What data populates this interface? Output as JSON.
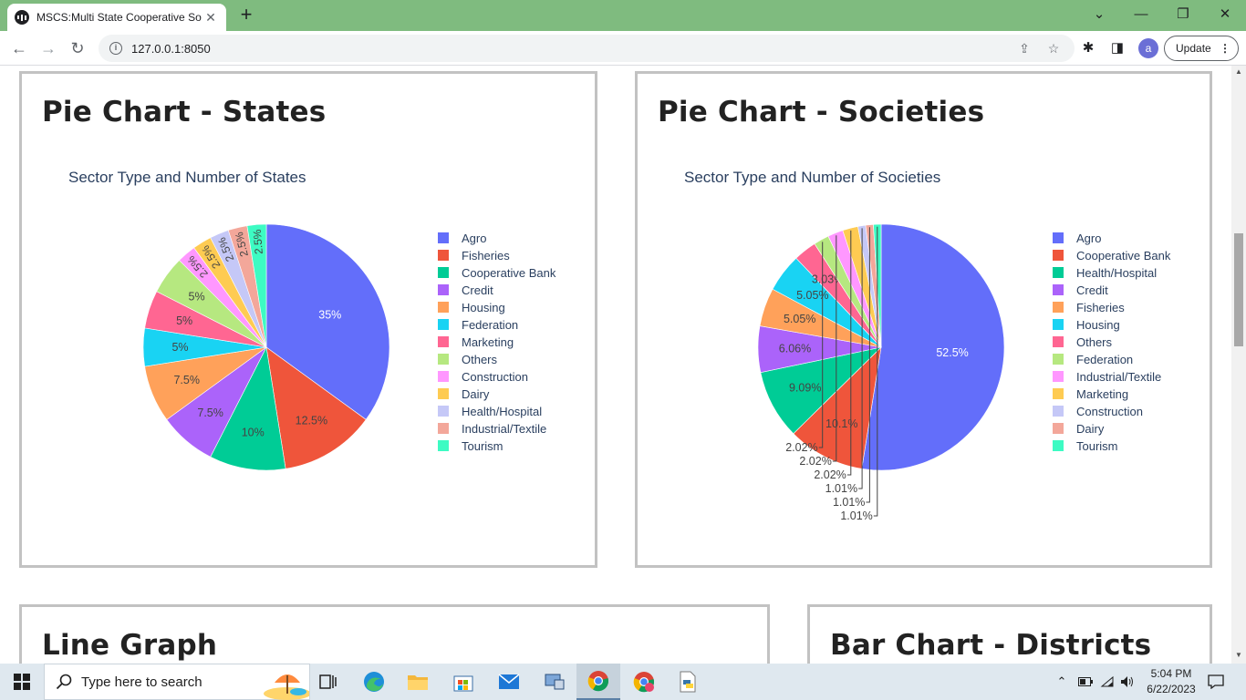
{
  "browser": {
    "tab_title": "MSCS:Multi State Cooperative So",
    "url": "127.0.0.1:8050",
    "update_label": "Update",
    "avatar_letter": "a"
  },
  "cards": {
    "states_title": "Pie Chart - States",
    "societies_title": "Pie Chart - Societies",
    "line_title": "Line Graph",
    "districts_title": "Bar Chart - Districts"
  },
  "chart_data": [
    {
      "type": "pie",
      "title": "Sector Type and Number of States",
      "legend_position": "right",
      "labels": [
        "Agro",
        "Fisheries",
        "Cooperative Bank",
        "Credit",
        "Housing",
        "Federation",
        "Marketing",
        "Others",
        "Construction",
        "Dairy",
        "Health/Hospital",
        "Industrial/Textile",
        "Tourism"
      ],
      "values": [
        35,
        12.5,
        10,
        7.5,
        7.5,
        5,
        5,
        5,
        2.5,
        2.5,
        2.5,
        2.5,
        2.5
      ],
      "text": [
        "35%",
        "12.5%",
        "10%",
        "7.5%",
        "7.5%",
        "5%",
        "5%",
        "5%",
        "2.5%",
        "2.5%",
        "2.5%",
        "2.5%",
        "2.5%"
      ],
      "colors": [
        "#636efa",
        "#ef553b",
        "#00cc96",
        "#ab63fa",
        "#ffa15a",
        "#19d3f3",
        "#ff6692",
        "#b6e880",
        "#ff97ff",
        "#fecb52",
        "#c5c8f7",
        "#f3a79a",
        "#3dfbc3"
      ]
    },
    {
      "type": "pie",
      "title": "Sector Type and Number of Societies",
      "legend_position": "right",
      "labels": [
        "Agro",
        "Cooperative Bank",
        "Health/Hospital",
        "Credit",
        "Fisheries",
        "Housing",
        "Others",
        "Federation",
        "Industrial/Textile",
        "Marketing",
        "Construction",
        "Dairy",
        "Tourism"
      ],
      "values": [
        52.5,
        10.1,
        9.09,
        6.06,
        5.05,
        5.05,
        3.03,
        2.02,
        2.02,
        2.02,
        1.01,
        1.01,
        1.01
      ],
      "text": [
        "52.5%",
        "10.1%",
        "9.09%",
        "6.06%",
        "5.05%",
        "5.05%",
        "3.03%",
        "2.02%",
        "2.02%",
        "2.02%",
        "1.01%",
        "1.01%",
        "1.01%"
      ],
      "colors": [
        "#636efa",
        "#ef553b",
        "#00cc96",
        "#ab63fa",
        "#ffa15a",
        "#19d3f3",
        "#ff6692",
        "#b6e880",
        "#ff97ff",
        "#fecb52",
        "#c5c8f7",
        "#f3a79a",
        "#3dfbc3"
      ]
    }
  ],
  "taskbar": {
    "search_placeholder": "Type here to search",
    "time": "5:04 PM",
    "date": "6/22/2023"
  }
}
